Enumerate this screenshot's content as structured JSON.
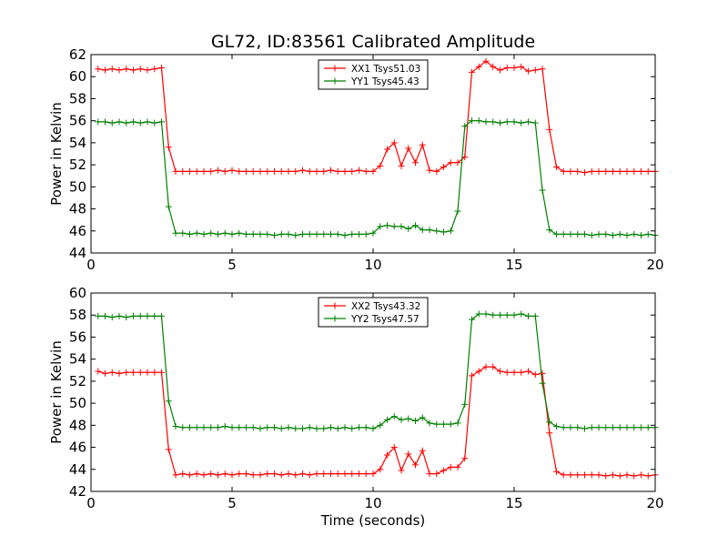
{
  "title": "GL72, ID:83561 Calibrated Amplitude",
  "chart_data": [
    {
      "type": "line",
      "xlim": [
        0,
        20
      ],
      "ylim": [
        44,
        62
      ],
      "xticks": [
        0,
        5,
        10,
        15,
        20
      ],
      "yticks": [
        44,
        46,
        48,
        50,
        52,
        54,
        56,
        58,
        60,
        62
      ],
      "xlabel": "",
      "ylabel": "Power in Kelvin",
      "legend_position": "top-center",
      "series": [
        {
          "name": "XX1 Tsys51.03",
          "color": "#ff0000",
          "x": [
            0.25,
            0.5,
            0.75,
            1.0,
            1.25,
            1.5,
            1.75,
            2.0,
            2.25,
            2.5,
            2.75,
            3.0,
            3.25,
            3.5,
            3.75,
            4.0,
            4.25,
            4.5,
            4.75,
            5.0,
            5.25,
            5.5,
            5.75,
            6.0,
            6.25,
            6.5,
            6.75,
            7.0,
            7.25,
            7.5,
            7.75,
            8.0,
            8.25,
            8.5,
            8.75,
            9.0,
            9.25,
            9.5,
            9.75,
            10.0,
            10.25,
            10.5,
            10.75,
            11.0,
            11.25,
            11.5,
            11.75,
            12.0,
            12.25,
            12.5,
            12.75,
            13.0,
            13.25,
            13.5,
            13.75,
            14.0,
            14.25,
            14.5,
            14.75,
            15.0,
            15.25,
            15.5,
            15.75,
            16.0,
            16.25,
            16.5,
            16.75,
            17.0,
            17.25,
            17.5,
            17.75,
            18.0,
            18.25,
            18.5,
            18.75,
            19.0,
            19.25,
            19.5,
            19.75,
            20.0
          ],
          "y": [
            60.7,
            60.6,
            60.7,
            60.6,
            60.7,
            60.6,
            60.7,
            60.6,
            60.7,
            60.8,
            53.6,
            51.4,
            51.4,
            51.4,
            51.4,
            51.4,
            51.4,
            51.5,
            51.4,
            51.5,
            51.4,
            51.4,
            51.4,
            51.4,
            51.4,
            51.4,
            51.4,
            51.4,
            51.4,
            51.5,
            51.4,
            51.4,
            51.4,
            51.5,
            51.4,
            51.4,
            51.4,
            51.5,
            51.4,
            51.4,
            51.9,
            53.4,
            54.0,
            51.9,
            53.5,
            52.2,
            53.8,
            51.5,
            51.4,
            51.8,
            52.2,
            52.2,
            52.7,
            60.4,
            60.9,
            61.4,
            60.9,
            60.6,
            60.8,
            60.8,
            60.9,
            60.5,
            60.6,
            60.7,
            55.2,
            51.8,
            51.4,
            51.4,
            51.4,
            51.3,
            51.4,
            51.4,
            51.4,
            51.4,
            51.4,
            51.4,
            51.4,
            51.4,
            51.4,
            51.4
          ]
        },
        {
          "name": "YY1 Tsys45.43",
          "color": "#008000",
          "x": [
            0.25,
            0.5,
            0.75,
            1.0,
            1.25,
            1.5,
            1.75,
            2.0,
            2.25,
            2.5,
            2.75,
            3.0,
            3.25,
            3.5,
            3.75,
            4.0,
            4.25,
            4.5,
            4.75,
            5.0,
            5.25,
            5.5,
            5.75,
            6.0,
            6.25,
            6.5,
            6.75,
            7.0,
            7.25,
            7.5,
            7.75,
            8.0,
            8.25,
            8.5,
            8.75,
            9.0,
            9.25,
            9.5,
            9.75,
            10.0,
            10.25,
            10.5,
            10.75,
            11.0,
            11.25,
            11.5,
            11.75,
            12.0,
            12.25,
            12.5,
            12.75,
            13.0,
            13.25,
            13.5,
            13.75,
            14.0,
            14.25,
            14.5,
            14.75,
            15.0,
            15.25,
            15.5,
            15.75,
            16.0,
            16.25,
            16.5,
            16.75,
            17.0,
            17.25,
            17.5,
            17.75,
            18.0,
            18.25,
            18.5,
            18.75,
            19.0,
            19.25,
            19.5,
            19.75,
            20.0
          ],
          "y": [
            55.9,
            55.9,
            55.8,
            55.9,
            55.8,
            55.9,
            55.8,
            55.9,
            55.8,
            55.9,
            48.2,
            45.8,
            45.8,
            45.7,
            45.8,
            45.7,
            45.8,
            45.7,
            45.8,
            45.7,
            45.8,
            45.7,
            45.7,
            45.7,
            45.7,
            45.6,
            45.7,
            45.7,
            45.6,
            45.7,
            45.7,
            45.7,
            45.7,
            45.7,
            45.7,
            45.6,
            45.7,
            45.7,
            45.7,
            45.8,
            46.4,
            46.5,
            46.4,
            46.4,
            46.2,
            46.5,
            46.1,
            46.1,
            46.0,
            45.9,
            46.0,
            47.8,
            55.5,
            56.0,
            56.0,
            55.9,
            55.9,
            55.8,
            55.9,
            55.9,
            55.8,
            55.9,
            55.8,
            49.7,
            46.1,
            45.7,
            45.7,
            45.7,
            45.7,
            45.7,
            45.6,
            45.7,
            45.7,
            45.6,
            45.7,
            45.6,
            45.7,
            45.6,
            45.7,
            45.6
          ]
        }
      ]
    },
    {
      "type": "line",
      "xlim": [
        0,
        20
      ],
      "ylim": [
        42,
        60
      ],
      "xticks": [
        0,
        5,
        10,
        15,
        20
      ],
      "yticks": [
        42,
        44,
        46,
        48,
        50,
        52,
        54,
        56,
        58,
        60
      ],
      "xlabel": "Time (seconds)",
      "ylabel": "Power in Kelvin",
      "legend_position": "top-center",
      "series": [
        {
          "name": "XX2 Tsys43.32",
          "color": "#ff0000",
          "x": [
            0.25,
            0.5,
            0.75,
            1.0,
            1.25,
            1.5,
            1.75,
            2.0,
            2.25,
            2.5,
            2.75,
            3.0,
            3.25,
            3.5,
            3.75,
            4.0,
            4.25,
            4.5,
            4.75,
            5.0,
            5.25,
            5.5,
            5.75,
            6.0,
            6.25,
            6.5,
            6.75,
            7.0,
            7.25,
            7.5,
            7.75,
            8.0,
            8.25,
            8.5,
            8.75,
            9.0,
            9.25,
            9.5,
            9.75,
            10.0,
            10.25,
            10.5,
            10.75,
            11.0,
            11.25,
            11.5,
            11.75,
            12.0,
            12.25,
            12.5,
            12.75,
            13.0,
            13.25,
            13.5,
            13.75,
            14.0,
            14.25,
            14.5,
            14.75,
            15.0,
            15.25,
            15.5,
            15.75,
            16.0,
            16.25,
            16.5,
            16.75,
            17.0,
            17.25,
            17.5,
            17.75,
            18.0,
            18.25,
            18.5,
            18.75,
            19.0,
            19.25,
            19.5,
            19.75,
            20.0
          ],
          "y": [
            52.9,
            52.7,
            52.8,
            52.7,
            52.8,
            52.8,
            52.8,
            52.8,
            52.8,
            52.8,
            45.8,
            43.5,
            43.6,
            43.5,
            43.6,
            43.5,
            43.6,
            43.5,
            43.6,
            43.5,
            43.6,
            43.6,
            43.5,
            43.5,
            43.6,
            43.6,
            43.5,
            43.6,
            43.5,
            43.6,
            43.5,
            43.6,
            43.6,
            43.6,
            43.6,
            43.6,
            43.6,
            43.6,
            43.6,
            43.6,
            44.0,
            45.3,
            46.0,
            43.9,
            45.4,
            44.4,
            45.7,
            43.6,
            43.6,
            43.9,
            44.2,
            44.2,
            45.0,
            52.5,
            52.9,
            53.3,
            53.3,
            52.9,
            52.8,
            52.8,
            52.8,
            52.9,
            52.6,
            52.7,
            47.3,
            43.8,
            43.5,
            43.5,
            43.5,
            43.5,
            43.5,
            43.5,
            43.4,
            43.5,
            43.4,
            43.5,
            43.4,
            43.5,
            43.4,
            43.5
          ]
        },
        {
          "name": "YY2 Tsys47.57",
          "color": "#008000",
          "x": [
            0.25,
            0.5,
            0.75,
            1.0,
            1.25,
            1.5,
            1.75,
            2.0,
            2.25,
            2.5,
            2.75,
            3.0,
            3.25,
            3.5,
            3.75,
            4.0,
            4.25,
            4.5,
            4.75,
            5.0,
            5.25,
            5.5,
            5.75,
            6.0,
            6.25,
            6.5,
            6.75,
            7.0,
            7.25,
            7.5,
            7.75,
            8.0,
            8.25,
            8.5,
            8.75,
            9.0,
            9.25,
            9.5,
            9.75,
            10.0,
            10.25,
            10.5,
            10.75,
            11.0,
            11.25,
            11.5,
            11.75,
            12.0,
            12.25,
            12.5,
            12.75,
            13.0,
            13.25,
            13.5,
            13.75,
            14.0,
            14.25,
            14.5,
            14.75,
            15.0,
            15.25,
            15.5,
            15.75,
            16.0,
            16.25,
            16.5,
            16.75,
            17.0,
            17.25,
            17.5,
            17.75,
            18.0,
            18.25,
            18.5,
            18.75,
            19.0,
            19.25,
            19.5,
            19.75,
            20.0
          ],
          "y": [
            57.9,
            57.9,
            57.8,
            57.9,
            57.8,
            57.9,
            57.9,
            57.9,
            57.9,
            57.9,
            50.2,
            47.9,
            47.8,
            47.8,
            47.8,
            47.8,
            47.8,
            47.8,
            47.9,
            47.8,
            47.8,
            47.8,
            47.8,
            47.7,
            47.8,
            47.8,
            47.7,
            47.8,
            47.7,
            47.7,
            47.8,
            47.7,
            47.7,
            47.8,
            47.7,
            47.8,
            47.7,
            47.8,
            47.8,
            47.7,
            48.0,
            48.5,
            48.8,
            48.5,
            48.6,
            48.4,
            48.7,
            48.2,
            48.1,
            48.1,
            48.1,
            48.2,
            49.9,
            57.6,
            58.1,
            58.1,
            58.0,
            58.0,
            58.0,
            58.0,
            58.1,
            57.9,
            57.9,
            51.8,
            48.3,
            47.9,
            47.8,
            47.8,
            47.8,
            47.7,
            47.8,
            47.8,
            47.8,
            47.8,
            47.8,
            47.8,
            47.8,
            47.8,
            47.8,
            47.8
          ]
        }
      ]
    }
  ]
}
